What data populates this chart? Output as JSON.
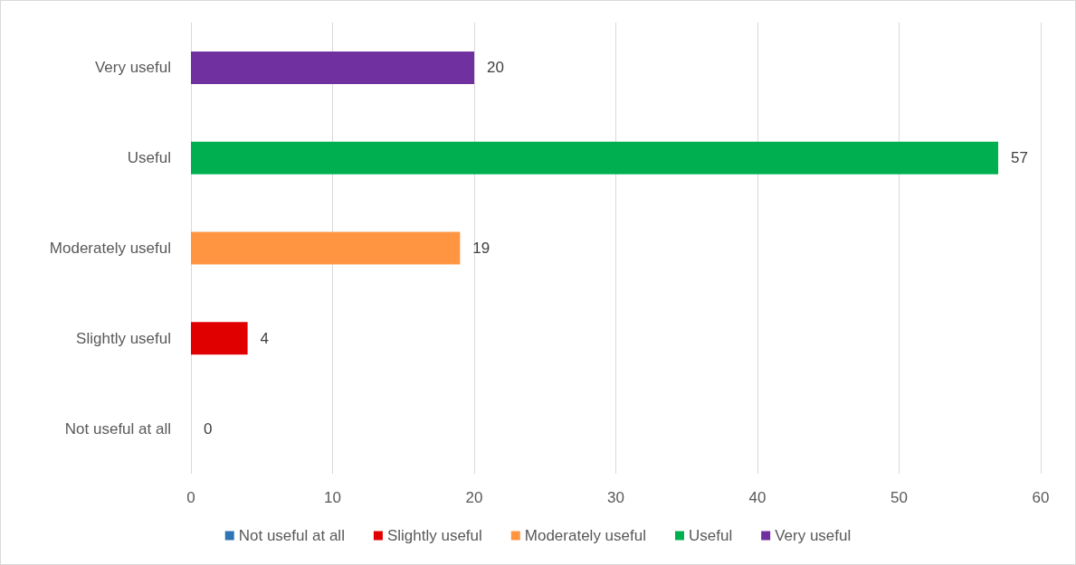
{
  "chart_data": {
    "type": "bar",
    "orientation": "horizontal",
    "categories": [
      "Very useful",
      "Useful",
      "Moderately useful",
      "Slightly useful",
      "Not useful at all"
    ],
    "series": [
      {
        "name": "Not useful at all",
        "color": "#2e75b6",
        "values": [
          null,
          null,
          null,
          null,
          0
        ]
      },
      {
        "name": "Slightly useful",
        "color": "#e00000",
        "values": [
          null,
          null,
          null,
          4,
          null
        ]
      },
      {
        "name": "Moderately useful",
        "color": "#ff9441",
        "values": [
          null,
          null,
          19,
          null,
          null
        ]
      },
      {
        "name": "Useful",
        "color": "#00b050",
        "values": [
          null,
          57,
          null,
          null,
          null
        ]
      },
      {
        "name": "Very useful",
        "color": "#7030a0",
        "values": [
          20,
          null,
          null,
          null,
          null
        ]
      }
    ],
    "xlim": [
      0,
      60
    ],
    "xticks": [
      0,
      10,
      20,
      30,
      40,
      50,
      60
    ],
    "data_labels": true,
    "grid": "x",
    "legend": "bottom"
  }
}
